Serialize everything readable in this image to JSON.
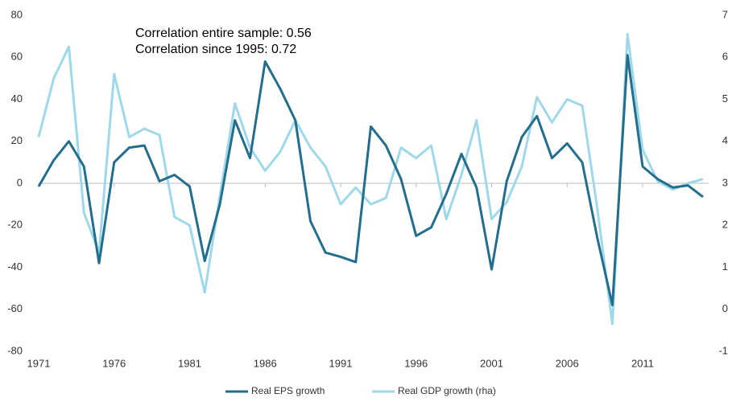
{
  "chart_data": {
    "type": "line",
    "annotations": [
      "Correlation entire sample: 0.56",
      "Correlation since 1995: 0.72"
    ],
    "x": [
      1971,
      1972,
      1973,
      1974,
      1975,
      1976,
      1977,
      1978,
      1979,
      1980,
      1981,
      1982,
      1983,
      1984,
      1985,
      1986,
      1987,
      1988,
      1989,
      1990,
      1991,
      1992,
      1993,
      1994,
      1995,
      1996,
      1997,
      1998,
      1999,
      2000,
      2001,
      2002,
      2003,
      2004,
      2005,
      2006,
      2007,
      2008,
      2009,
      2010,
      2011,
      2012,
      2013,
      2014,
      2015
    ],
    "series": [
      {
        "name": "Real EPS growth",
        "color": "#236e8c",
        "values": [
          -1.5,
          11,
          20,
          8,
          -38,
          10,
          17,
          18,
          1,
          4,
          -1.5,
          -37,
          -10,
          30,
          12,
          58,
          45,
          30,
          -18,
          -33,
          -35,
          -37.5,
          27,
          18,
          2,
          -25,
          -21,
          -5,
          14,
          -2,
          -41,
          1,
          22,
          32,
          12,
          19,
          10,
          -26,
          -58,
          61,
          8,
          2,
          -2,
          -1,
          -6.5
        ]
      },
      {
        "name": "Real GDP growth (rha)",
        "color": "#9fd8e8",
        "axis": "y2",
        "values": [
          4.1,
          5.5,
          6.25,
          2.3,
          1.35,
          5.6,
          4.1,
          4.3,
          4.15,
          2.2,
          2.0,
          0.4,
          2.7,
          4.9,
          3.85,
          3.3,
          3.75,
          4.5,
          3.85,
          3.4,
          2.5,
          2.9,
          2.5,
          2.65,
          3.85,
          3.6,
          3.9,
          2.15,
          3.2,
          4.5,
          2.15,
          2.55,
          3.4,
          5.05,
          4.45,
          5.0,
          4.85,
          2.4,
          -0.35,
          6.55,
          3.8,
          3.05,
          2.85,
          3.0,
          3.1
        ]
      }
    ],
    "xlim": [
      1971,
      2015
    ],
    "xticks": [
      1971,
      1976,
      1981,
      1986,
      1991,
      1996,
      2001,
      2006,
      2011
    ],
    "ylim": [
      -80,
      80
    ],
    "yticks": [
      -80,
      -60,
      -40,
      -20,
      0,
      20,
      40,
      60,
      80
    ],
    "y2lim": [
      -1,
      7
    ],
    "y2ticks": [
      -1,
      0,
      1,
      2,
      3,
      4,
      5,
      6,
      7
    ],
    "legend": "bottom"
  }
}
